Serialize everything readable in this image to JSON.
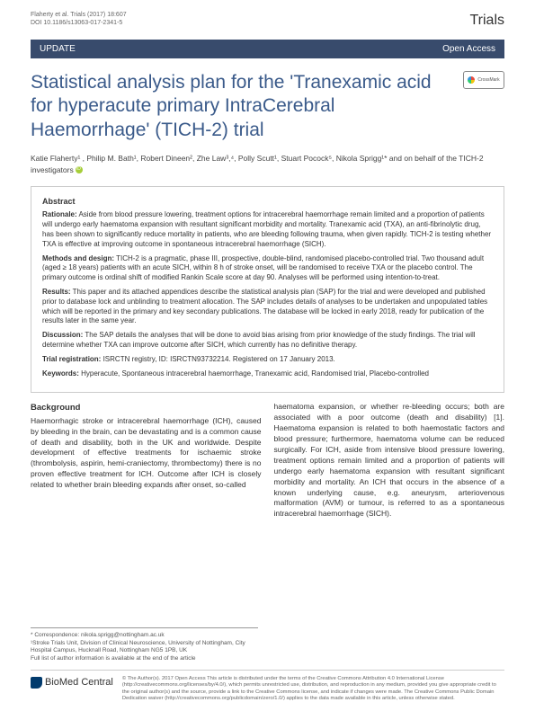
{
  "header": {
    "citation": "Flaherty et al. Trials (2017) 18:607",
    "doi": "DOI 10.1186/s13063-017-2341-5",
    "journal": "Trials"
  },
  "banner": {
    "type": "UPDATE",
    "access": "Open Access"
  },
  "title": "Statistical analysis plan for the 'Tranexamic acid for hyperacute primary IntraCerebral Haemorrhage' (TICH-2) trial",
  "crossmark": "CrossMark",
  "authors_html": "Katie Flaherty¹ , Philip M. Bath¹, Robert Dineen², Zhe Law³,⁴, Polly Scutt¹, Stuart Pocock⁵, Nikola Sprigg¹* and on behalf of the TICH-2 investigators",
  "abstract": {
    "title": "Abstract",
    "rationale_label": "Rationale:",
    "rationale": " Aside from blood pressure lowering, treatment options for intracerebral haemorrhage remain limited and a proportion of patients will undergo early haematoma expansion with resultant significant morbidity and mortality. Tranexamic acid (TXA), an anti-fibrinolytic drug, has been shown to significantly reduce mortality in patients, who are bleeding following trauma, when given rapidly. TICH-2 is testing whether TXA is effective at improving outcome in spontaneous intracerebral haemorrhage (SICH).",
    "methods_label": "Methods and design:",
    "methods": " TICH-2 is a pragmatic, phase III, prospective, double-blind, randomised placebo-controlled trial. Two thousand adult (aged ≥ 18 years) patients with an acute SICH, within 8 h of stroke onset, will be randomised to receive TXA or the placebo control. The primary outcome is ordinal shift of modified Rankin Scale score at day 90. Analyses will be performed using intention-to-treat.",
    "results_label": "Results:",
    "results": " This paper and its attached appendices describe the statistical analysis plan (SAP) for the trial and were developed and published prior to database lock and unblinding to treatment allocation. The SAP includes details of analyses to be undertaken and unpopulated tables which will be reported in the primary and key secondary publications. The database will be locked in early 2018, ready for publication of the results later in the same year.",
    "discussion_label": "Discussion:",
    "discussion": " The SAP details the analyses that will be done to avoid bias arising from prior knowledge of the study findings. The trial will determine whether TXA can improve outcome after SICH, which currently has no definitive therapy.",
    "reg_label": "Trial registration:",
    "reg": " ISRCTN registry, ID: ISRCTN93732214. Registered on 17 January 2013.",
    "kw_label": "Keywords:",
    "kw": " Hyperacute, Spontaneous intracerebral haemorrhage, Tranexamic acid, Randomised trial, Placebo-controlled"
  },
  "body": {
    "heading": "Background",
    "col1": "Haemorrhagic stroke or intracerebral haemorrhage (ICH), caused by bleeding in the brain, can be devastating and is a common cause of death and disability, both in the UK and worldwide. Despite development of effective treatments for ischaemic stroke (thrombolysis, aspirin, hemi-craniectomy, thrombectomy) there is no proven effective treatment for ICH. Outcome after ICH is closely related to whether brain bleeding expands after onset, so-called",
    "col2": "haematoma expansion, or whether re-bleeding occurs; both are associated with a poor outcome (death and disability) [1]. Haematoma expansion is related to both haemostatic factors and blood pressure; furthermore, haematoma volume can be reduced surgically. For ICH, aside from intensive blood pressure lowering, treatment options remain limited and a proportion of patients will undergo early haematoma expansion with resultant significant morbidity and mortality. An ICH that occurs in the absence of a known underlying cause, e.g. aneurysm, arteriovenous malformation (AVM) or tumour, is referred to as a spontaneous intracerebral haemorrhage (SICH)."
  },
  "correspondence": {
    "email": "* Correspondence: nikola.sprigg@nottingham.ac.uk",
    "affil": "¹Stroke Trials Unit, Division of Clinical Neuroscience, University of Nottingham, City Hospital Campus, Hucknall Road, Nottingham NG5 1PB, UK",
    "note": "Full list of author information is available at the end of the article"
  },
  "footer": {
    "publisher": "BioMed Central",
    "license": "© The Author(s). 2017 Open Access This article is distributed under the terms of the Creative Commons Attribution 4.0 International License (http://creativecommons.org/licenses/by/4.0/), which permits unrestricted use, distribution, and reproduction in any medium, provided you give appropriate credit to the original author(s) and the source, provide a link to the Creative Commons license, and indicate if changes were made. The Creative Commons Public Domain Dedication waiver (http://creativecommons.org/publicdomain/zero/1.0/) applies to the data made available in this article, unless otherwise stated."
  },
  "colors": {
    "banner_bg": "#384b6c",
    "title_color": "#3a5a8a",
    "orcid": "#a6ce39"
  }
}
